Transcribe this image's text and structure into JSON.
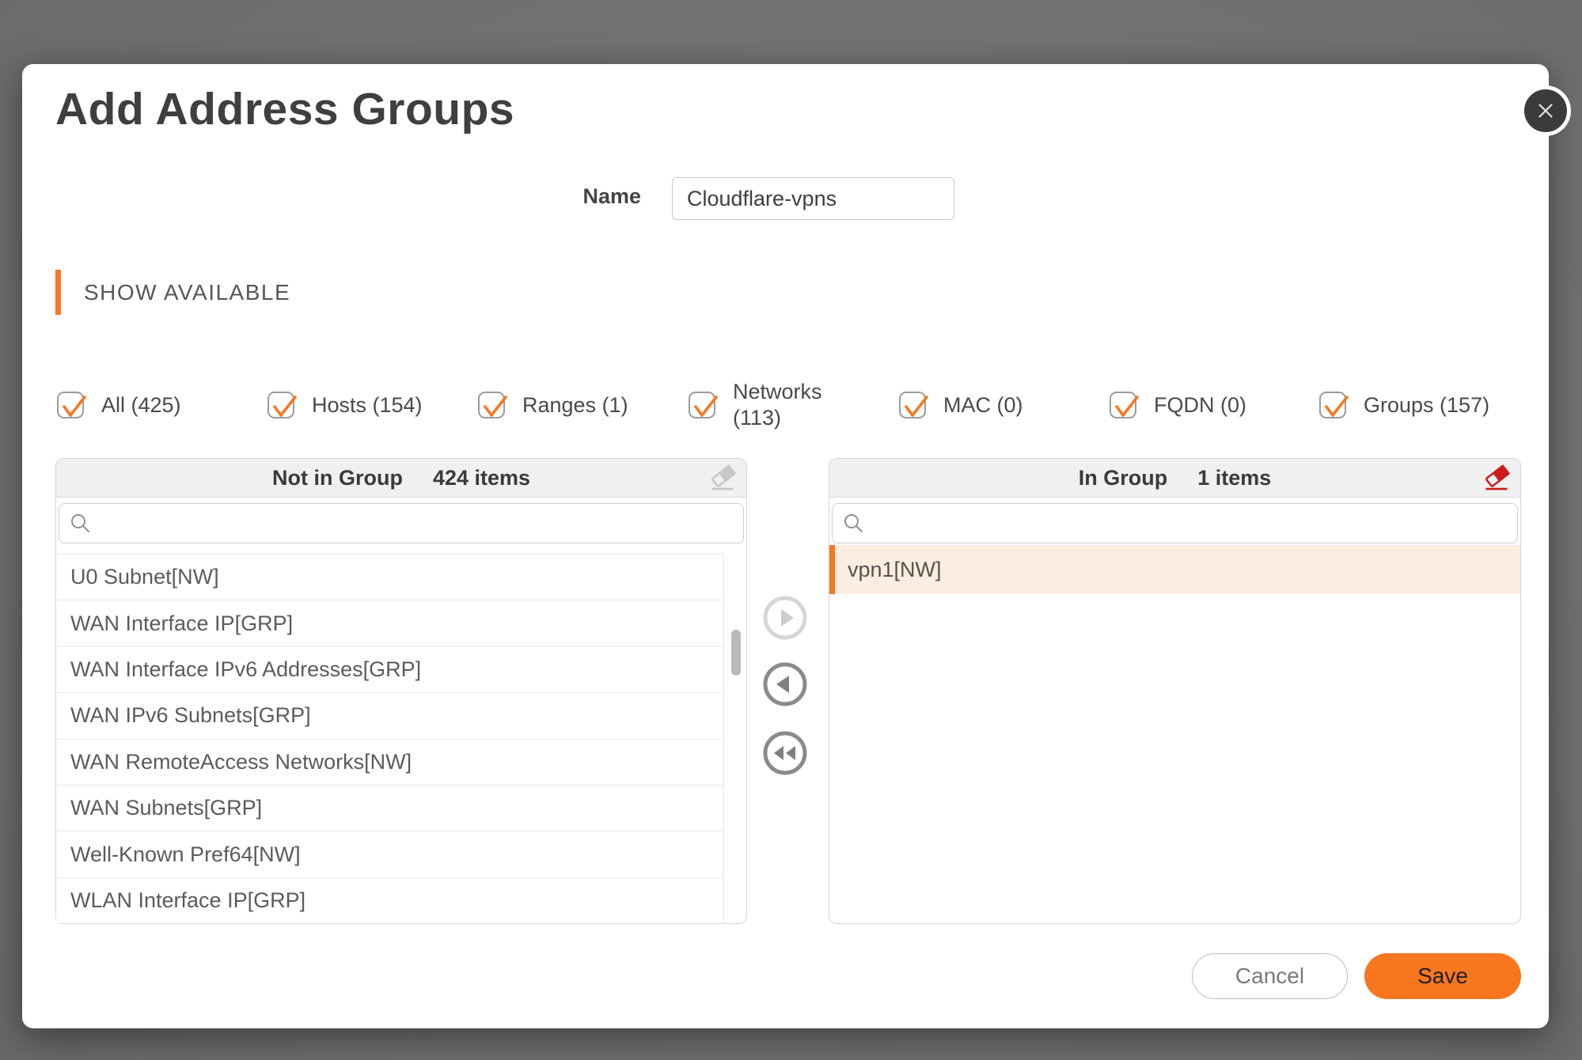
{
  "modal": {
    "title": "Add Address Groups"
  },
  "name_field": {
    "label": "Name",
    "value": "Cloudflare-vpns"
  },
  "section_header": "SHOW AVAILABLE",
  "filters": [
    {
      "label": "All (425)",
      "checked": true,
      "wrap": false
    },
    {
      "label": "Hosts (154)",
      "checked": true,
      "wrap": false
    },
    {
      "label": "Ranges (1)",
      "checked": true,
      "wrap": false
    },
    {
      "label": "Networks (113)",
      "checked": true,
      "wrap": true
    },
    {
      "label": "MAC (0)",
      "checked": true,
      "wrap": false
    },
    {
      "label": "FQDN (0)",
      "checked": true,
      "wrap": false
    },
    {
      "label": "Groups (157)",
      "checked": true,
      "wrap": false
    }
  ],
  "panels": {
    "left": {
      "title": "Not in Group",
      "count": "424 items",
      "items": [
        "U0 Subnet[NW]",
        "WAN Interface IP[GRP]",
        "WAN Interface IPv6 Addresses[GRP]",
        "WAN IPv6 Subnets[GRP]",
        "WAN RemoteAccess Networks[NW]",
        "WAN Subnets[GRP]",
        "Well-Known Pref64[NW]",
        "WLAN Interface IP[GRP]"
      ]
    },
    "right": {
      "title": "In Group",
      "count": "1 items",
      "items": [
        {
          "label": "vpn1[NW]",
          "selected": true
        }
      ]
    }
  },
  "footer": {
    "cancel": "Cancel",
    "save": "Save"
  },
  "colors": {
    "accent": "#F8771E",
    "selected_row_bg": "#FBEEE1",
    "erase_red": "#CE1A1A",
    "erase_gray": "#C7C7C7"
  }
}
